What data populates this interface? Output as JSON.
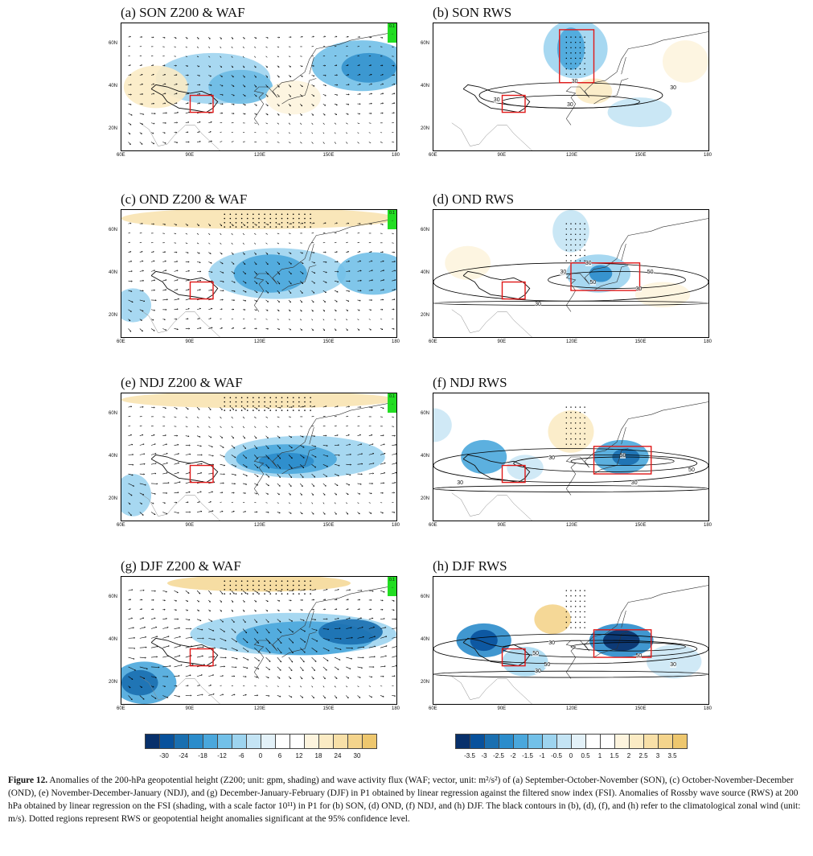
{
  "panels": [
    {
      "id": "a",
      "title": "(a) SON Z200 & WAF",
      "kind": "z"
    },
    {
      "id": "b",
      "title": "(b) SON RWS",
      "kind": "rws"
    },
    {
      "id": "c",
      "title": "(c) OND Z200 & WAF",
      "kind": "z"
    },
    {
      "id": "d",
      "title": "(d) OND RWS",
      "kind": "rws"
    },
    {
      "id": "e",
      "title": "(e) NDJ Z200 & WAF",
      "kind": "z"
    },
    {
      "id": "f",
      "title": "(f) NDJ RWS",
      "kind": "rws"
    },
    {
      "id": "g",
      "title": "(g) DJF Z200 & WAF",
      "kind": "z"
    },
    {
      "id": "h",
      "title": "(h) DJF RWS",
      "kind": "rws"
    }
  ],
  "lat_ticks": [
    "60N",
    "40N",
    "20N"
  ],
  "lon_ticks": [
    "60E",
    "90E",
    "120E",
    "150E",
    "180"
  ],
  "ref_vector_label": "0.1",
  "contour_labels": {
    "b": [
      "30",
      "30",
      "30",
      "30"
    ],
    "d": [
      "30",
      "30",
      "50",
      "30",
      "50",
      "30"
    ],
    "f": [
      "30",
      "50",
      "50",
      "30",
      "30"
    ],
    "h": [
      "30",
      "50",
      "50",
      "50",
      "30",
      "30"
    ]
  },
  "colorbar_z": {
    "labels": [
      "-30",
      "-24",
      "-18",
      "-12",
      "-6",
      "0",
      "6",
      "12",
      "18",
      "24",
      "30"
    ],
    "colors": [
      "#08306b",
      "#08519c",
      "#1a6fb0",
      "#2b8ccb",
      "#4aa7dc",
      "#72c0e8",
      "#9dd4ef",
      "#c4e4f4",
      "#e3f1f8",
      "#ffffff",
      "#ffffff",
      "#fdf4de",
      "#fbebc4",
      "#f8e0a8",
      "#f4d48c",
      "#eec76e"
    ]
  },
  "colorbar_rws": {
    "labels": [
      "-3.5",
      "-3",
      "-2.5",
      "-2",
      "-1.5",
      "-1",
      "-0.5",
      "0",
      "0.5",
      "1",
      "1.5",
      "2",
      "2.5",
      "3",
      "3.5"
    ],
    "colors": [
      "#08306b",
      "#08519c",
      "#1a6fb0",
      "#2b8ccb",
      "#4aa7dc",
      "#72c0e8",
      "#9dd4ef",
      "#c4e4f4",
      "#e3f1f8",
      "#ffffff",
      "#ffffff",
      "#fdf4de",
      "#fbebc4",
      "#f8e0a8",
      "#f4d48c",
      "#eec76e"
    ]
  },
  "caption": {
    "label": "Figure 12.",
    "text": " Anomalies of the 200-hPa geopotential height (Z200; unit: gpm, shading) and wave activity flux (WAF; vector, unit: m²/s²) of (a) September-October-November (SON), (c) October-November-December (OND), (e) November-December-January (NDJ), and (g) December-January-February (DJF) in P1 obtained by linear regression against the filtered snow index (FSI). Anomalies of Rossby wave source (RWS) at 200 hPa obtained by linear regression on the FSI (shading, with a scale factor 10¹¹) in P1 for (b) SON, (d) OND, (f) NDJ, and (h) DJF. The black contours in (b), (d), (f), and (h) refer to the climatological zonal wind (unit: m/s). Dotted regions represent RWS or geopotential height anomalies significant at the 95% confidence level."
  }
}
